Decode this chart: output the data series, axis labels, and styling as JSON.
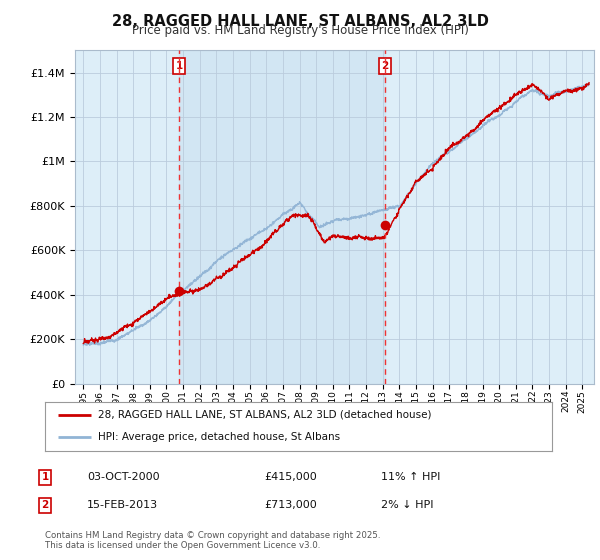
{
  "title": "28, RAGGED HALL LANE, ST ALBANS, AL2 3LD",
  "subtitle": "Price paid vs. HM Land Registry's House Price Index (HPI)",
  "background_color": "#ffffff",
  "plot_bg_color": "#ddeeff",
  "ylim": [
    0,
    1500000
  ],
  "yticks": [
    0,
    200000,
    400000,
    600000,
    800000,
    1000000,
    1200000,
    1400000
  ],
  "ytick_labels": [
    "£0",
    "£200K",
    "£400K",
    "£600K",
    "£800K",
    "£1M",
    "£1.2M",
    "£1.4M"
  ],
  "sale1": {
    "date_num": 2000.75,
    "price": 415000,
    "label": "1",
    "date_str": "03-OCT-2000",
    "hpi_pct": "11% ↑ HPI"
  },
  "sale2": {
    "date_num": 2013.12,
    "price": 713000,
    "label": "2",
    "date_str": "15-FEB-2013",
    "hpi_pct": "2% ↓ HPI"
  },
  "hpi_line_color": "#91b4d5",
  "price_line_color": "#cc0000",
  "sale_dot_color": "#cc0000",
  "vline_color": "#ee3333",
  "legend_label_price": "28, RAGGED HALL LANE, ST ALBANS, AL2 3LD (detached house)",
  "legend_label_hpi": "HPI: Average price, detached house, St Albans",
  "footer": "Contains HM Land Registry data © Crown copyright and database right 2025.\nThis data is licensed under the Open Government Licence v3.0.",
  "xlim_start": 1994.5,
  "xlim_end": 2025.7
}
